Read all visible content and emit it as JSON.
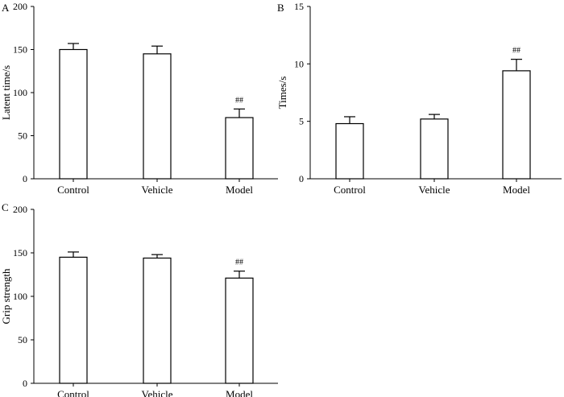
{
  "figure": {
    "panels": [
      {
        "label": "A"
      },
      {
        "label": "B"
      },
      {
        "label": "C"
      }
    ]
  },
  "chart_data": [
    {
      "panel": "A",
      "type": "bar",
      "categories": [
        "Control",
        "Vehicle",
        "Model"
      ],
      "values": [
        150,
        145,
        71
      ],
      "errors": [
        7,
        9,
        10
      ],
      "annotations": [
        "",
        "",
        "##"
      ],
      "xlabel": "",
      "ylabel": "Latent time/s",
      "ylim": [
        0,
        200
      ],
      "yticks": [
        0,
        50,
        100,
        150,
        200
      ],
      "grid": false,
      "colors": {
        "bar_fill": "#ffffff",
        "bar_stroke": "#000000"
      }
    },
    {
      "panel": "B",
      "type": "bar",
      "categories": [
        "Control",
        "Vehicle",
        "Model"
      ],
      "values": [
        4.8,
        5.2,
        9.4
      ],
      "errors": [
        0.6,
        0.4,
        1.0
      ],
      "annotations": [
        "",
        "",
        "##"
      ],
      "xlabel": "",
      "ylabel": "Times/s",
      "ylim": [
        0,
        15
      ],
      "yticks": [
        0,
        5,
        10,
        15
      ],
      "grid": false,
      "colors": {
        "bar_fill": "#ffffff",
        "bar_stroke": "#000000"
      }
    },
    {
      "panel": "C",
      "type": "bar",
      "categories": [
        "Control",
        "Vehicle",
        "Model"
      ],
      "values": [
        145,
        144,
        121
      ],
      "errors": [
        6,
        4,
        8
      ],
      "annotations": [
        "",
        "",
        "##"
      ],
      "xlabel": "",
      "ylabel": "Grip strength",
      "ylim": [
        0,
        200
      ],
      "yticks": [
        0,
        50,
        100,
        150,
        200
      ],
      "grid": false,
      "colors": {
        "bar_fill": "#ffffff",
        "bar_stroke": "#000000"
      }
    }
  ]
}
